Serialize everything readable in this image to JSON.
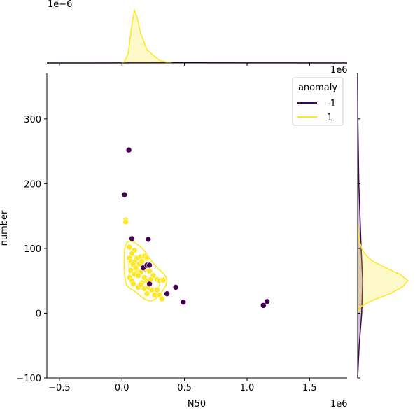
{
  "chart_data": {
    "type": "scatter",
    "title": "",
    "xlabel": "N50",
    "ylabel": "number",
    "x_offset_label": "1e6",
    "marg_x_offset_label": "1e−6",
    "marg_y_offset_label": "1e6",
    "xlim": [
      -0.6,
      1.8
    ],
    "ylim": [
      -100,
      370
    ],
    "xticks": [
      -0.5,
      0.0,
      0.5,
      1.0,
      1.5
    ],
    "xtick_labels": [
      "−0.5",
      "0.0",
      "0.5",
      "1.0",
      "1.5"
    ],
    "yticks": [
      -100,
      0,
      100,
      200,
      300
    ],
    "ytick_labels": [
      "−100",
      "0",
      "100",
      "200",
      "300"
    ],
    "grid": false,
    "legend": {
      "title": "anomaly",
      "placement": "top-right",
      "entries": [
        {
          "label": "-1",
          "color": "#440154"
        },
        {
          "label": "1",
          "color": "#fde725"
        }
      ]
    },
    "series": [
      {
        "name": "-1",
        "color": "#440154",
        "points": [
          [
            0.055,
            252
          ],
          [
            0.02,
            183
          ],
          [
            0.08,
            115
          ],
          [
            0.21,
            114
          ],
          [
            0.17,
            70
          ],
          [
            0.2,
            74
          ],
          [
            0.22,
            74
          ],
          [
            0.22,
            45
          ],
          [
            0.36,
            30
          ],
          [
            0.43,
            40
          ],
          [
            0.49,
            17
          ],
          [
            1.13,
            12
          ],
          [
            1.16,
            18
          ]
        ]
      },
      {
        "name": "1",
        "color": "#fde725",
        "points": [
          [
            0.03,
            144
          ],
          [
            0.03,
            141
          ],
          [
            0.06,
            102
          ],
          [
            0.1,
            97
          ],
          [
            0.08,
            92
          ],
          [
            0.06,
            85
          ],
          [
            0.12,
            85
          ],
          [
            0.07,
            80
          ],
          [
            0.15,
            87
          ],
          [
            0.18,
            88
          ],
          [
            0.2,
            85
          ],
          [
            0.1,
            79
          ],
          [
            0.14,
            76
          ],
          [
            0.16,
            80
          ],
          [
            0.09,
            75
          ],
          [
            0.18,
            68
          ],
          [
            0.22,
            65
          ],
          [
            0.12,
            66
          ],
          [
            0.15,
            63
          ],
          [
            0.1,
            60
          ],
          [
            0.06,
            55
          ],
          [
            0.08,
            50
          ],
          [
            0.13,
            58
          ],
          [
            0.18,
            55
          ],
          [
            0.25,
            58
          ],
          [
            0.2,
            50
          ],
          [
            0.23,
            52
          ],
          [
            0.09,
            45
          ],
          [
            0.16,
            47
          ],
          [
            0.28,
            52
          ],
          [
            0.3,
            50
          ],
          [
            0.33,
            51
          ],
          [
            0.13,
            40
          ],
          [
            0.18,
            38
          ],
          [
            0.24,
            36
          ],
          [
            0.28,
            36
          ],
          [
            0.2,
            30
          ],
          [
            0.26,
            28
          ],
          [
            0.3,
            28
          ],
          [
            0.32,
            22
          ],
          [
            0.15,
            44
          ],
          [
            0.21,
            40
          ],
          [
            0.07,
            66
          ],
          [
            0.11,
            70
          ]
        ]
      }
    ],
    "marginal_x": {
      "type": "kde",
      "series": [
        {
          "name": "-1",
          "color": "#440154",
          "x": [
            -0.6,
            0.0,
            0.3,
            0.6,
            1.0,
            1.3,
            1.8
          ],
          "density": [
            0.0,
            0.01,
            0.02,
            0.02,
            0.01,
            0.01,
            0.0
          ]
        },
        {
          "name": "1",
          "color": "#fde725",
          "x": [
            0.0,
            0.02,
            0.05,
            0.08,
            0.1,
            0.12,
            0.15,
            0.2,
            0.25,
            0.3,
            0.35,
            0.4
          ],
          "density": [
            0.0,
            0.15,
            1.5,
            6.0,
            8.0,
            7.0,
            4.5,
            2.0,
            1.2,
            0.4,
            0.15,
            0.0
          ]
        }
      ]
    },
    "marginal_y": {
      "type": "kde",
      "series": [
        {
          "name": "-1",
          "color": "#440154",
          "y": [
            -100,
            -50,
            0,
            50,
            100,
            200,
            300,
            370
          ],
          "density": [
            0.0,
            0.15,
            0.4,
            0.5,
            0.35,
            0.12,
            0.02,
            0.0
          ]
        },
        {
          "name": "1",
          "color": "#fde725",
          "y": [
            0,
            10,
            20,
            30,
            40,
            50,
            60,
            70,
            80,
            90,
            100,
            110,
            120,
            140
          ],
          "density": [
            0.0,
            0.3,
            1.5,
            3.2,
            4.4,
            5.0,
            4.2,
            2.8,
            1.5,
            0.8,
            0.4,
            0.2,
            0.1,
            0.0
          ]
        }
      ]
    }
  }
}
